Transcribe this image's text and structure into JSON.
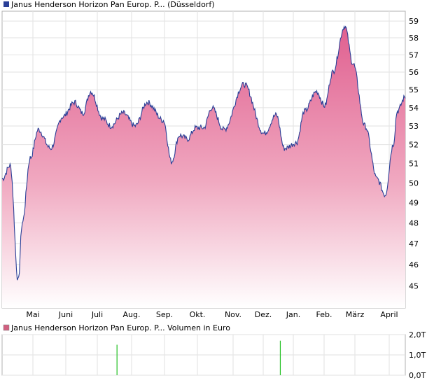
{
  "price_chart": {
    "legend_label": "Janus Henderson Horizon Pan Europ. P...  (Düsseldorf)",
    "legend_color": "#2a3f97",
    "line_color": "#2a3f97",
    "fill_top_color": "#e06090",
    "fill_bottom_color": "#ffffff",
    "grid": true
  },
  "volume_chart": {
    "legend_label": "Janus Henderson Horizon Pan Europ. P...  Volumen in Euro",
    "legend_color": "#d06080",
    "bar_color": "#22c022",
    "grid": true
  },
  "chart_data": [
    {
      "type": "area",
      "series": [
        {
          "name": "Janus Henderson Horizon Pan Europ. P... (Düsseldorf)",
          "x": [
            0,
            0.02,
            0.04,
            0.05,
            0.07,
            0.09,
            0.12,
            0.15,
            0.18,
            0.2,
            0.22,
            0.25,
            0.27,
            0.3,
            0.33,
            0.36,
            0.4,
            0.42,
            0.44,
            0.46,
            0.48,
            0.5,
            0.52,
            0.55,
            0.6,
            0.65,
            0.68,
            0.7,
            0.73,
            0.75,
            0.78,
            0.8,
            0.82,
            0.85,
            0.87,
            0.9,
            0.93,
            0.95,
            0.97,
            0.98,
            1.0
          ],
          "values": [
            50.2,
            50.9,
            45.2,
            48.0,
            51.3,
            52.8,
            51.8,
            53.5,
            54.3,
            53.7,
            54.9,
            53.4,
            53.0,
            53.7,
            53.0,
            54.3,
            53.3,
            51.1,
            52.5,
            52.3,
            52.9,
            52.9,
            54.0,
            52.8,
            55.3,
            52.6,
            53.6,
            51.8,
            52.1,
            53.8,
            54.9,
            54.1,
            56.0,
            58.7,
            56.5,
            53.0,
            50.2,
            49.4,
            52.0,
            53.8,
            54.6
          ]
        }
      ],
      "x_ticks": [
        "Mai",
        "Juni",
        "Juli",
        "Aug.",
        "Sep.",
        "Okt.",
        "Nov.",
        "Dez.",
        "Jan.",
        "Feb.",
        "März",
        "April"
      ],
      "y_ticks": [
        45,
        46,
        47,
        48,
        49,
        50,
        51,
        52,
        53,
        54,
        55,
        56,
        57,
        58,
        59
      ],
      "ylim": [
        44.0,
        59.6
      ],
      "y_scale": "log"
    },
    {
      "type": "bar",
      "series": [
        {
          "name": "Janus Henderson Horizon Pan Europ. P... Volumen in Euro",
          "x": [
            0.285,
            0.69
          ],
          "values": [
            1.5,
            1.7
          ]
        }
      ],
      "y_ticks": [
        "0,0T",
        "1,0T",
        "2,0T"
      ],
      "y_tick_values": [
        0,
        1.0,
        2.0
      ],
      "ylim": [
        0,
        2.0
      ]
    }
  ]
}
